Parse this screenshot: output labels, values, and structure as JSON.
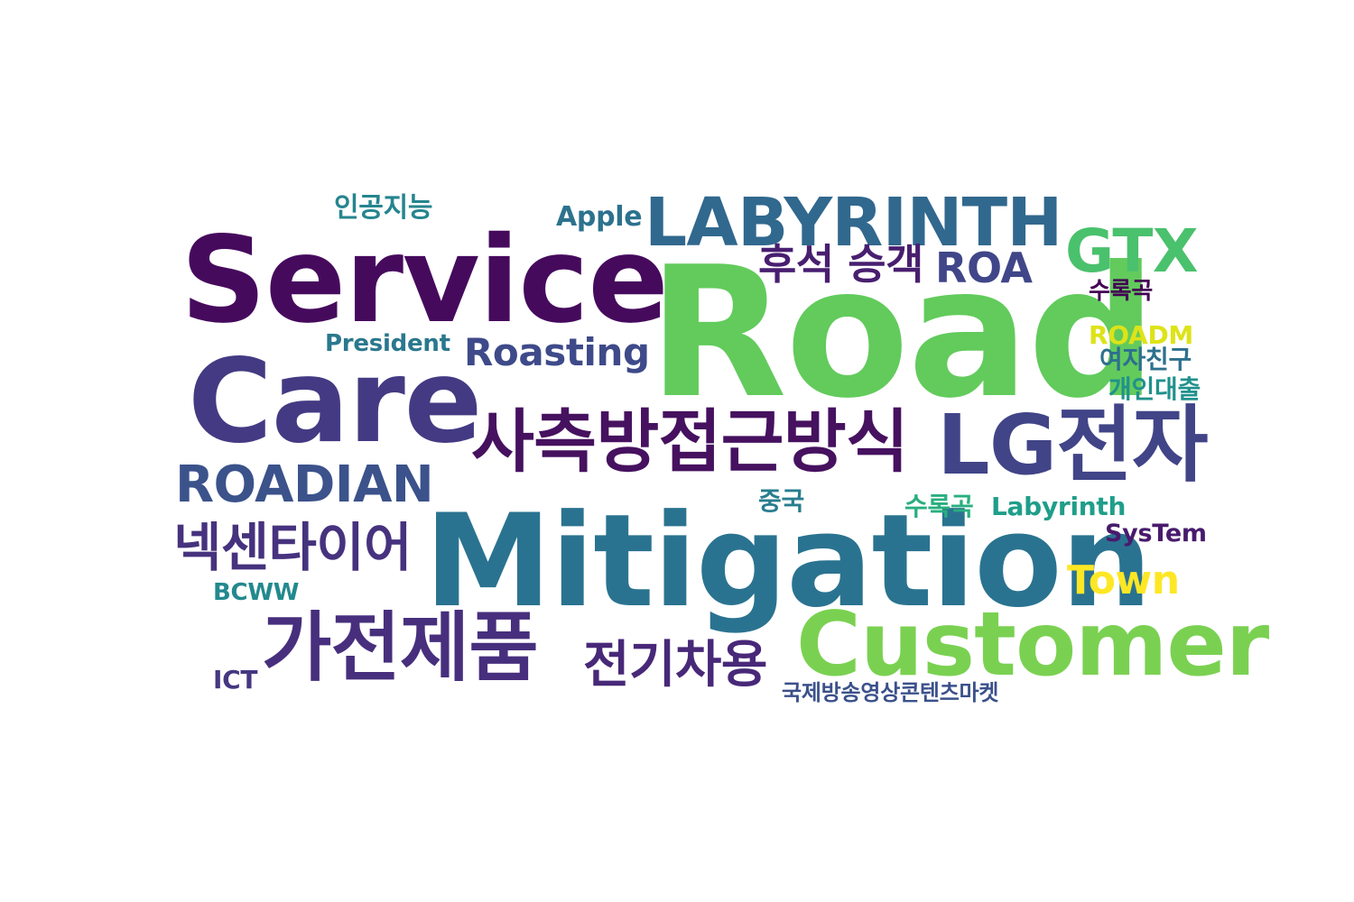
{
  "words": {
    "w01": {
      "text": "Road",
      "color": "#62cb5c"
    },
    "w02": {
      "text": "Mitigation",
      "color": "#2a7390"
    },
    "w03": {
      "text": "Service",
      "color": "#460a5d"
    },
    "w04": {
      "text": "Care",
      "color": "#443a83"
    },
    "w05": {
      "text": "Customer",
      "color": "#7ad151"
    },
    "w06": {
      "text": "사측방접근방식",
      "color": "#46115f"
    },
    "w07": {
      "text": "LABYRINTH",
      "color": "#31688e"
    },
    "w08": {
      "text": "LG전자",
      "color": "#414487"
    },
    "w09": {
      "text": "가전제품",
      "color": "#472f7d"
    },
    "w10": {
      "text": "ROADIAN",
      "color": "#3b528b"
    },
    "w11": {
      "text": "넥센타이어",
      "color": "#46327e"
    },
    "w12": {
      "text": "GTX",
      "color": "#4ac16d"
    },
    "w13": {
      "text": "전기차용",
      "color": "#482878"
    },
    "w14": {
      "text": "Roasting",
      "color": "#3e4a89"
    },
    "w15": {
      "text": "후석 승객",
      "color": "#481f70"
    },
    "w16": {
      "text": "ROA",
      "color": "#404688"
    },
    "w17": {
      "text": "Town",
      "color": "#fde725"
    },
    "w18": {
      "text": "Apple",
      "color": "#2c728e"
    },
    "w19": {
      "text": "인공지능",
      "color": "#25858e"
    },
    "w20": {
      "text": "President",
      "color": "#2a788e"
    },
    "w21": {
      "text": "수록곡",
      "color": "#440154"
    },
    "w22": {
      "text": "ROADM",
      "color": "#dde318"
    },
    "w23": {
      "text": "여자친구",
      "color": "#2d708e"
    },
    "w24": {
      "text": "개인대출",
      "color": "#21918c"
    },
    "w25": {
      "text": "중국",
      "color": "#287d8e"
    },
    "w26": {
      "text": "수록곡",
      "color": "#29af7f"
    },
    "w27": {
      "text": "Labyrinth",
      "color": "#1f9e89"
    },
    "w28": {
      "text": "SysTem",
      "color": "#481b6d"
    },
    "w29": {
      "text": "BCWW",
      "color": "#23898e"
    },
    "w30": {
      "text": "ICT",
      "color": "#453781"
    },
    "w31": {
      "text": "국제방송영상콘텐츠마켓",
      "color": "#3b518b"
    }
  }
}
